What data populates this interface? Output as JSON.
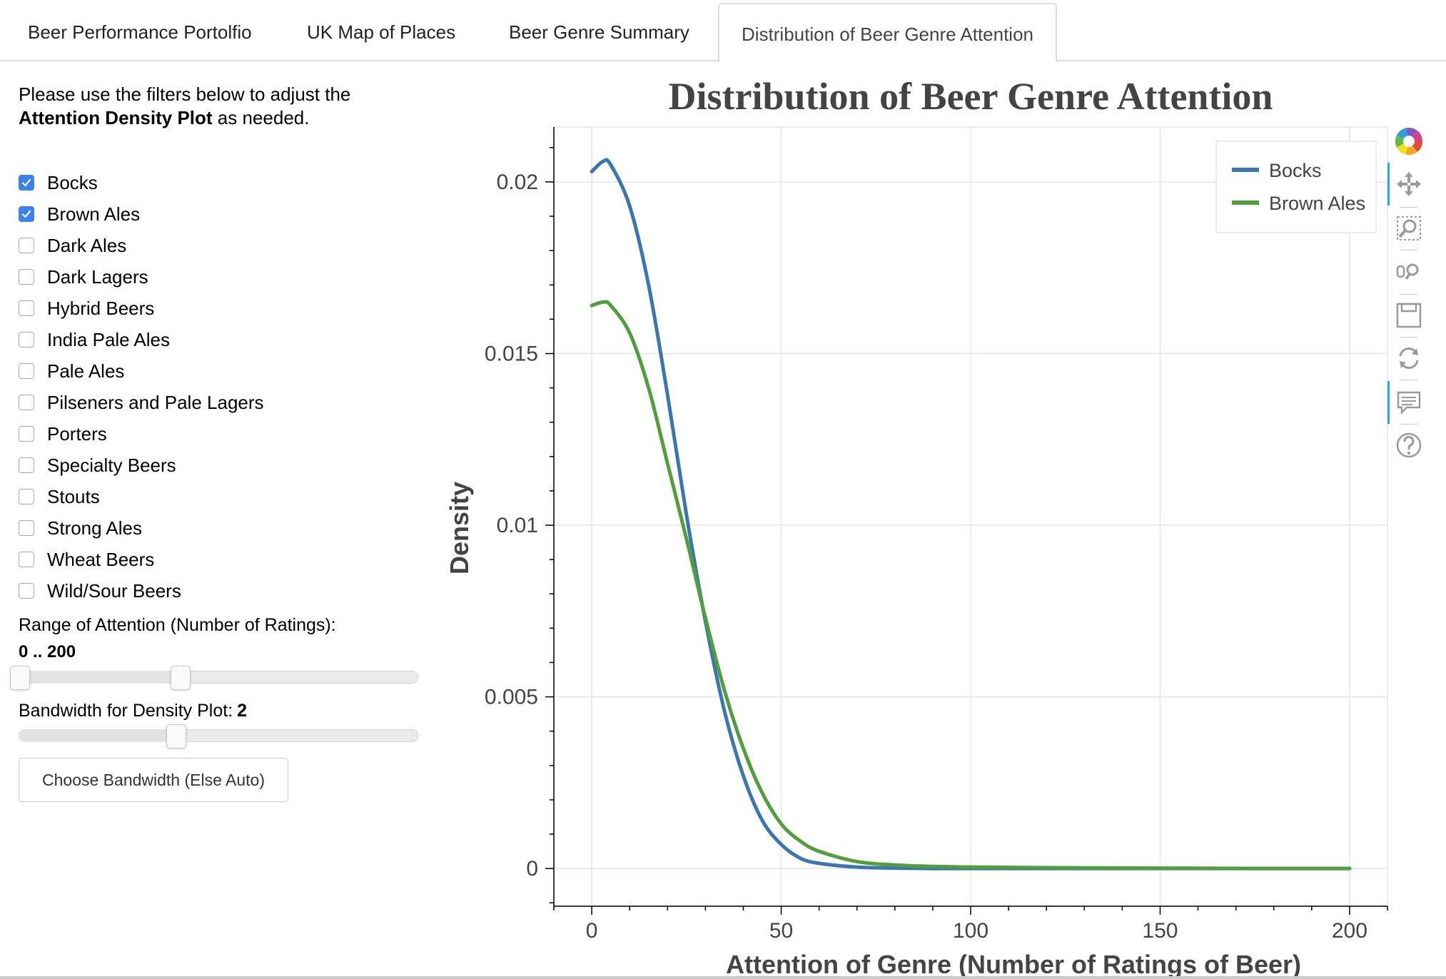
{
  "tabs": [
    {
      "label": "Beer Performance Portolfio",
      "active": false
    },
    {
      "label": "UK Map of Places",
      "active": false
    },
    {
      "label": "Beer Genre Summary",
      "active": false
    },
    {
      "label": "Distribution of Beer Genre Attention",
      "active": true
    }
  ],
  "sidebar": {
    "intro_text": "Please use the filters below to adjust the",
    "intro_bold": "Attention Density Plot",
    "intro_tail": "as needed.",
    "genres": [
      {
        "label": "Bocks",
        "checked": true
      },
      {
        "label": "Brown Ales",
        "checked": true
      },
      {
        "label": "Dark Ales",
        "checked": false
      },
      {
        "label": "Dark Lagers",
        "checked": false
      },
      {
        "label": "Hybrid Beers",
        "checked": false
      },
      {
        "label": "India Pale Ales",
        "checked": false
      },
      {
        "label": "Pale Ales",
        "checked": false
      },
      {
        "label": "Pilseners and Pale Lagers",
        "checked": false
      },
      {
        "label": "Porters",
        "checked": false
      },
      {
        "label": "Specialty Beers",
        "checked": false
      },
      {
        "label": "Stouts",
        "checked": false
      },
      {
        "label": "Strong Ales",
        "checked": false
      },
      {
        "label": "Wheat Beers",
        "checked": false
      },
      {
        "label": "Wild/Sour Beers",
        "checked": false
      }
    ],
    "range_label": "Range of Attention (Number of Ratings):",
    "range_value": "0 .. 200",
    "range_min": 0,
    "range_max": 200,
    "range_slider_fraction": 0.4,
    "bandwidth_label": "Bandwidth for Density Plot:",
    "bandwidth_value": "2",
    "bandwidth_slider_fraction": 0.39,
    "bandwidth_button": "Choose Bandwidth (Else Auto)"
  },
  "chart_data": {
    "type": "line",
    "title": "Distribution of Beer Genre Attention",
    "xlabel": "Attention of Genre (Number of Ratings of Beer)",
    "ylabel": "Density",
    "xlim": [
      -10,
      210
    ],
    "ylim": [
      -0.0011,
      0.0216
    ],
    "xticks": [
      0,
      50,
      100,
      150,
      200
    ],
    "xtick_labels": [
      "0",
      "50",
      "100",
      "150",
      "200"
    ],
    "yticks": [
      0,
      0.005,
      0.01,
      0.015,
      0.02
    ],
    "ytick_labels": [
      "0",
      "0.005",
      "0.01",
      "0.015",
      "0.02"
    ],
    "grid": true,
    "legend_position": "top-right",
    "x": [
      0,
      3,
      5,
      10,
      15,
      20,
      25,
      30,
      35,
      40,
      45,
      50,
      55,
      60,
      70,
      80,
      90,
      100,
      125,
      150,
      175,
      200
    ],
    "series": [
      {
        "name": "Bocks",
        "color": "#3a76af",
        "values": [
          0.0203,
          0.0206,
          0.0205,
          0.0193,
          0.017,
          0.0138,
          0.0103,
          0.0072,
          0.0046,
          0.0027,
          0.0014,
          0.0007,
          0.0003,
          0.00015,
          4e-05,
          1e-05,
          0,
          0,
          0,
          0,
          0,
          0
        ]
      },
      {
        "name": "Brown Ales",
        "color": "#519e3e",
        "values": [
          0.0164,
          0.0165,
          0.0164,
          0.0156,
          0.014,
          0.0118,
          0.0096,
          0.0073,
          0.0052,
          0.0035,
          0.0022,
          0.0013,
          0.0008,
          0.0005,
          0.0002,
          0.0001,
          6e-05,
          4e-05,
          2e-05,
          1e-05,
          0,
          0
        ]
      }
    ]
  },
  "toolbar": {
    "tools": [
      "bokeh-logo-icon",
      "pan-icon",
      "box-zoom-icon",
      "wheel-zoom-icon",
      "save-icon",
      "reset-icon",
      "hover-icon",
      "help-icon"
    ],
    "logo_colors": [
      "#e34a33",
      "#f4a622",
      "#f2e01e",
      "#5fba46",
      "#2d9fd9",
      "#7b57c5",
      "#d73f8f"
    ],
    "accent_color": "#26aae1"
  }
}
